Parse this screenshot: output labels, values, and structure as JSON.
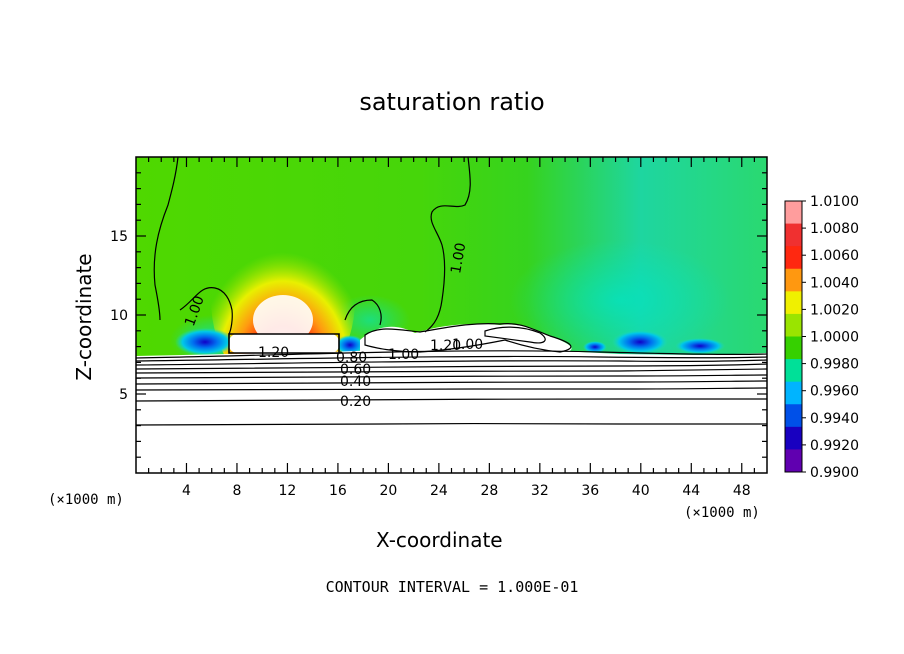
{
  "chart_data": {
    "type": "heatmap",
    "title": "saturation ratio",
    "xlabel": "X-coordinate",
    "ylabel": "Z-coordinate",
    "x_unit": "(×1000 m)",
    "xlim": [
      0,
      50
    ],
    "ylim": [
      0,
      20
    ],
    "x_ticks": [
      "4",
      "8",
      "12",
      "16",
      "20",
      "24",
      "28",
      "32",
      "36",
      "40",
      "44",
      "48"
    ],
    "y_ticks": [
      "5",
      "10",
      "15"
    ],
    "colorbar": {
      "labels": [
        "1.0100",
        "1.0080",
        "1.0060",
        "1.0040",
        "1.0020",
        "1.0000",
        "0.9980",
        "0.9960",
        "0.9940",
        "0.9920",
        "0.9900"
      ],
      "colors": [
        "#ff9d9d",
        "#f03030",
        "#ff2810",
        "#ff9810",
        "#f0f000",
        "#9ae400",
        "#36d000",
        "#00e098",
        "#00b4ff",
        "#0050e8",
        "#1800c0",
        "#6000b0"
      ]
    },
    "contour_labels": [
      "1.00",
      "1.00",
      "1.00",
      "1.00",
      "1.20",
      "1.20",
      "0.80",
      "0.60",
      "0.40",
      "0.20"
    ],
    "footer": "CONTOUR INTERVAL = 1.000E-01"
  }
}
